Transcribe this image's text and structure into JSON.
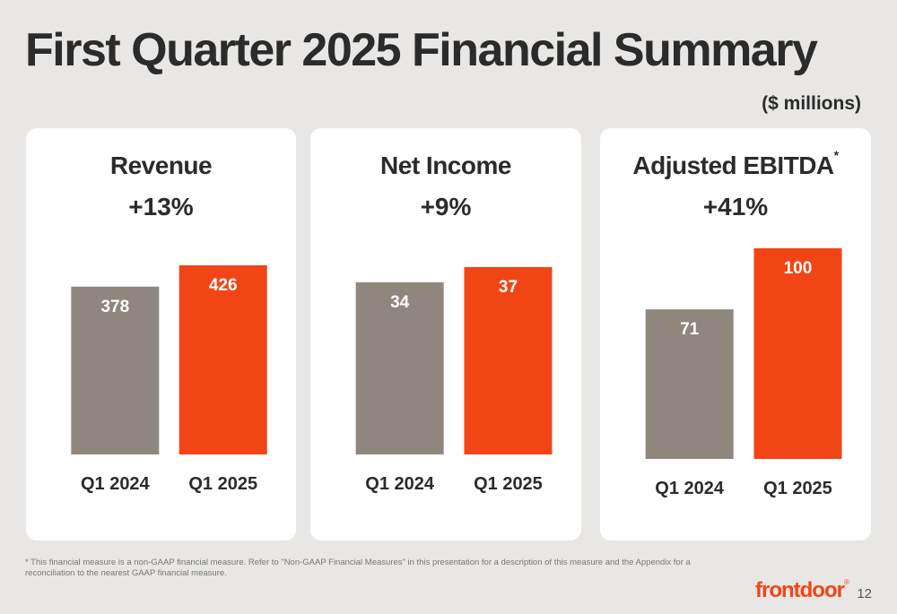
{
  "slide": {
    "title": "First Quarter 2025 Financial Summary",
    "units_note": "($ millions)",
    "footnote": "* This financial measure is a non-GAAP financial measure. Refer to \"Non-GAAP Financial Measures\" in this presentation for a description of this measure and the Appendix for a reconciliation to the nearest GAAP financial measure.",
    "logo_text": "frontdoor",
    "logo_mark": "®",
    "page_number": "12"
  },
  "colors": {
    "prior_year": "#8f867e",
    "current_year": "#f24516",
    "background": "#e8e7e5",
    "card": "#ffffff"
  },
  "chart_data": [
    {
      "type": "bar",
      "title": "Revenue",
      "title_marker": "",
      "subtitle": "+13%",
      "categories": [
        "Q1 2024",
        "Q1 2025"
      ],
      "values": [
        378,
        426
      ],
      "data_labels": [
        "378",
        "426"
      ]
    },
    {
      "type": "bar",
      "title": "Net Income",
      "title_marker": "",
      "subtitle": "+9%",
      "categories": [
        "Q1 2024",
        "Q1 2025"
      ],
      "values": [
        34,
        37
      ],
      "data_labels": [
        "34",
        "37"
      ]
    },
    {
      "type": "bar",
      "title": "Adjusted EBITDA",
      "title_marker": "*",
      "subtitle": "+41%",
      "categories": [
        "Q1 2024",
        "Q1 2025"
      ],
      "values": [
        71,
        100
      ],
      "data_labels": [
        "71",
        "100"
      ]
    }
  ]
}
